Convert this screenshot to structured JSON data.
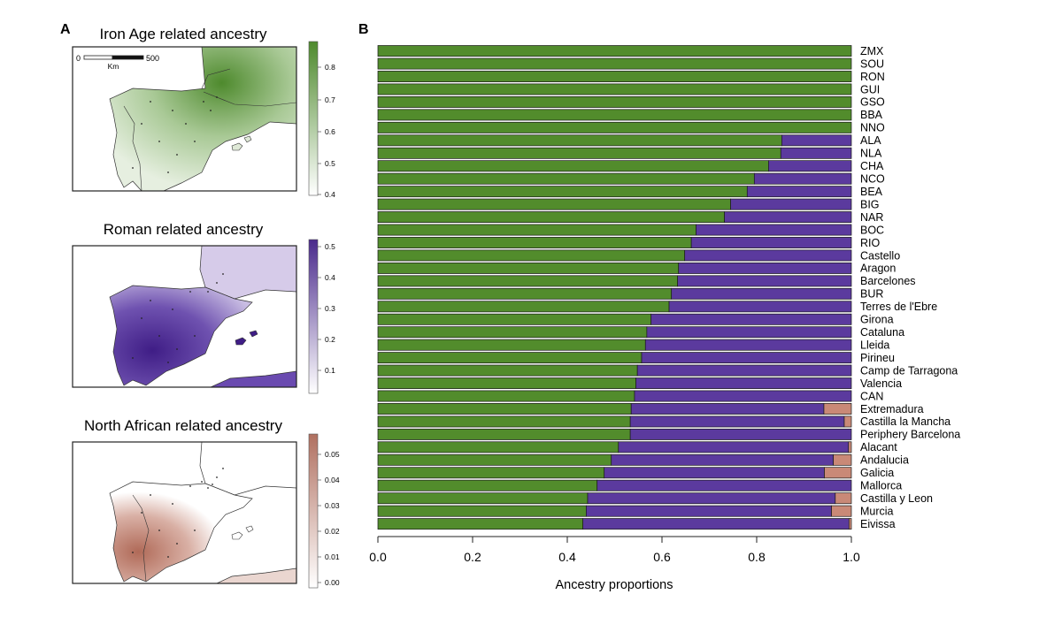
{
  "panel_a": {
    "letter": "A",
    "scalebar": {
      "start": "0",
      "end": "500",
      "unit": "Km"
    },
    "maps": [
      {
        "title": "Iron Age related ancestry",
        "color": "#4e8a2d",
        "ticks": [
          "0.8",
          "0.7",
          "0.6",
          "0.5",
          "0.4"
        ]
      },
      {
        "title": "Roman related ancestry",
        "color": "#4a2a8c",
        "ticks": [
          "0.5",
          "0.4",
          "0.3",
          "0.2",
          "0.1"
        ]
      },
      {
        "title": "North African related ancestry",
        "color": "#b07060",
        "ticks": [
          "0.05",
          "0.04",
          "0.03",
          "0.02",
          "0.01",
          "0.00"
        ]
      }
    ]
  },
  "panel_b": {
    "letter": "B"
  },
  "colors": {
    "iron_age": "#528c2c",
    "roman": "#5b3a9e",
    "north_african": "#c98977"
  },
  "chart_data": {
    "type": "bar",
    "orientation": "horizontal",
    "stacked": true,
    "xlabel": "Ancestry proportions",
    "xlim": [
      0,
      1
    ],
    "xticks": [
      "0.0",
      "0.2",
      "0.4",
      "0.6",
      "0.8",
      "1.0"
    ],
    "categories": [
      "ZMX",
      "SOU",
      "RON",
      "GUI",
      "GSO",
      "BBA",
      "NNO",
      "ALA",
      "NLA",
      "CHA",
      "NCO",
      "BEA",
      "BIG",
      "NAR",
      "BOC",
      "RIO",
      "Castello",
      "Aragon",
      "Barcelones",
      "BUR",
      "Terres de l'Ebre",
      "Girona",
      "Cataluna",
      "Lleida",
      "Pirineu",
      "Camp de Tarragona",
      "Valencia",
      "CAN",
      "Extremadura",
      "Castilla la Mancha",
      "Periphery Barcelona",
      "Alacant",
      "Andalucia",
      "Galicia",
      "Mallorca",
      "Castilla y Leon",
      "Murcia",
      "Eivissa"
    ],
    "series": [
      {
        "values": [
          1,
          1,
          1,
          1,
          1,
          1,
          1,
          0.853,
          0.851,
          0.825,
          0.795,
          0.78,
          0.745,
          0.732,
          0.672,
          0.662,
          0.648,
          0.635,
          0.633,
          0.62,
          0.615,
          0.577,
          0.568,
          0.565,
          0.557,
          0.548,
          0.545,
          0.542,
          0.535,
          0.533,
          0.533,
          0.508,
          0.493,
          0.478,
          0.463,
          0.443,
          0.44,
          0.433
        ]
      },
      {
        "values": [
          0,
          0,
          0,
          0,
          0,
          0,
          0,
          0.147,
          0.149,
          0.175,
          0.205,
          0.22,
          0.255,
          0.268,
          0.328,
          0.338,
          0.352,
          0.365,
          0.367,
          0.38,
          0.385,
          0.423,
          0.432,
          0.435,
          0.443,
          0.452,
          0.455,
          0.458,
          0.407,
          0.452,
          0.467,
          0.486,
          0.469,
          0.465,
          0.537,
          0.523,
          0.518,
          0.562
        ]
      },
      {
        "values": [
          0,
          0,
          0,
          0,
          0,
          0,
          0,
          0,
          0,
          0,
          0,
          0,
          0,
          0,
          0,
          0,
          0,
          0,
          0,
          0,
          0,
          0,
          0,
          0,
          0,
          0,
          0,
          0,
          0.058,
          0.015,
          0,
          0.006,
          0.038,
          0.057,
          0,
          0.034,
          0.042,
          0.005
        ]
      }
    ]
  }
}
